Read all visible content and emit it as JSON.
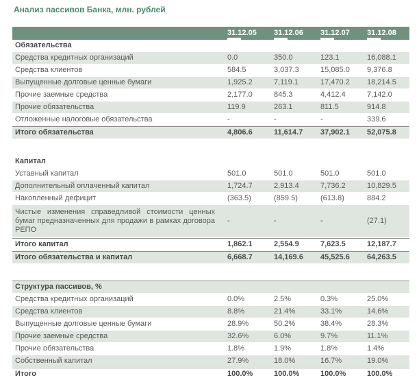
{
  "title": "Анализ пассивов Банка, млн. рублей",
  "colors": {
    "header_bar": "#6F917E",
    "shade": "#DFE6E0",
    "text": "#595959",
    "text_bold": "#4A4A4A",
    "title_text": "#4E8A6C",
    "rule": "#8A8A8A"
  },
  "table": {
    "columns": [
      "31.12.05",
      "31.12.06",
      "31.12.07",
      "31.12.08"
    ],
    "sections": [
      {
        "rows": [
          {
            "type": "header",
            "bold": true,
            "shaded": false,
            "label": "Обязательства",
            "values": [
              "",
              "",
              "",
              ""
            ]
          },
          {
            "type": "data",
            "shaded": true,
            "label": "Средства кредитных организаций",
            "values": [
              "0.0",
              "350.0",
              "123.1",
              "16,088.1"
            ]
          },
          {
            "type": "data",
            "shaded": false,
            "label": "Средства клиентов",
            "values": [
              "584.5",
              "3,037.3",
              "15,085.0",
              "9,376.8"
            ]
          },
          {
            "type": "data",
            "shaded": true,
            "label": "Выпущенные долговые ценные бумаги",
            "values": [
              "1,925.2",
              "7,119.1",
              "17,470.2",
              "18,214.5"
            ]
          },
          {
            "type": "data",
            "shaded": false,
            "label": "Прочие заемные средства",
            "values": [
              "2,177.0",
              "845.3",
              "4,412.4",
              "7,142.0"
            ]
          },
          {
            "type": "data",
            "shaded": true,
            "label": "Прочие обязательства",
            "values": [
              "119.9",
              "263.1",
              "811.5",
              "914.8"
            ]
          },
          {
            "type": "data",
            "shaded": false,
            "label": "Отложенные налоговые обязательства",
            "values": [
              "-",
              "-",
              "-",
              "339.6"
            ]
          },
          {
            "type": "total",
            "bold": true,
            "shaded": true,
            "rule_top": true,
            "label": "Итого обязательства",
            "values": [
              "4,806.6",
              "11,614.7",
              "37,902.1",
              "52,075.8"
            ]
          }
        ]
      },
      {
        "rows": [
          {
            "type": "header",
            "bold": true,
            "shaded": false,
            "label": "Капитал",
            "values": [
              "",
              "",
              "",
              ""
            ]
          },
          {
            "type": "data",
            "shaded": false,
            "label": "Уставный капитал",
            "values": [
              "501.0",
              "501.0",
              "501.0",
              "501.0"
            ]
          },
          {
            "type": "data",
            "shaded": true,
            "label": "Дополнительный оплаченный капитал",
            "values": [
              "1,724.7",
              "2,913.4",
              "7,736.2",
              "10,829.5"
            ]
          },
          {
            "type": "data",
            "shaded": false,
            "label": "Накопленный дефицит",
            "values": [
              "(363.5)",
              "(859.5)",
              "(613.8)",
              "884.2"
            ]
          },
          {
            "type": "data",
            "shaded": true,
            "multiline": true,
            "label": "Чистые изменения справедливой стоимости ценных бумаг предназначенных для продажи в рамках договора РЕПО",
            "values": [
              "-",
              "-",
              "-",
              "(27.1)"
            ]
          },
          {
            "type": "total",
            "bold": true,
            "shaded": false,
            "rule_top": true,
            "label": "Итого капитал",
            "values": [
              "1,862.1",
              "2,554.9",
              "7,623.5",
              "12,187.7"
            ]
          },
          {
            "type": "total",
            "bold": true,
            "shaded": true,
            "rule_top": true,
            "label": "Итого обязательства и капитал",
            "values": [
              "6,668.7",
              "14,169.6",
              "45,525.6",
              "64,263.5"
            ]
          }
        ]
      },
      {
        "rows": [
          {
            "type": "header",
            "bold": true,
            "shaded": true,
            "rule_top": true,
            "label": "Структура пассивов, %",
            "values": [
              "",
              "",
              "",
              ""
            ]
          },
          {
            "type": "data",
            "shaded": false,
            "label": "Средства кредитных организаций",
            "values": [
              "0.0%",
              "2.5%",
              "0.3%",
              "25.0%"
            ]
          },
          {
            "type": "data",
            "shaded": true,
            "label": "Средства клиентов",
            "values": [
              "8.8%",
              "21.4%",
              "33.1%",
              "14.6%"
            ]
          },
          {
            "type": "data",
            "shaded": false,
            "label": "Выпущенные долговые ценные бумаги",
            "values": [
              "28.9%",
              "50.2%",
              "38.4%",
              "28.3%"
            ]
          },
          {
            "type": "data",
            "shaded": true,
            "label": "Прочие заемные средства",
            "values": [
              "32.6%",
              "6.0%",
              "9.7%",
              "11.1%"
            ]
          },
          {
            "type": "data",
            "shaded": false,
            "label": "Прочие обязательства",
            "values": [
              "1.8%",
              "1.9%",
              "1.8%",
              "1.4%"
            ]
          },
          {
            "type": "data",
            "shaded": true,
            "label": "Собственный капитал",
            "values": [
              "27.9%",
              "18.0%",
              "16.7%",
              "19.0%"
            ]
          },
          {
            "type": "total",
            "bold": true,
            "shaded": false,
            "rule_top": true,
            "label": "Итого",
            "values": [
              "100.0%",
              "100.0%",
              "100.0%",
              "100.0%"
            ]
          }
        ]
      }
    ]
  }
}
